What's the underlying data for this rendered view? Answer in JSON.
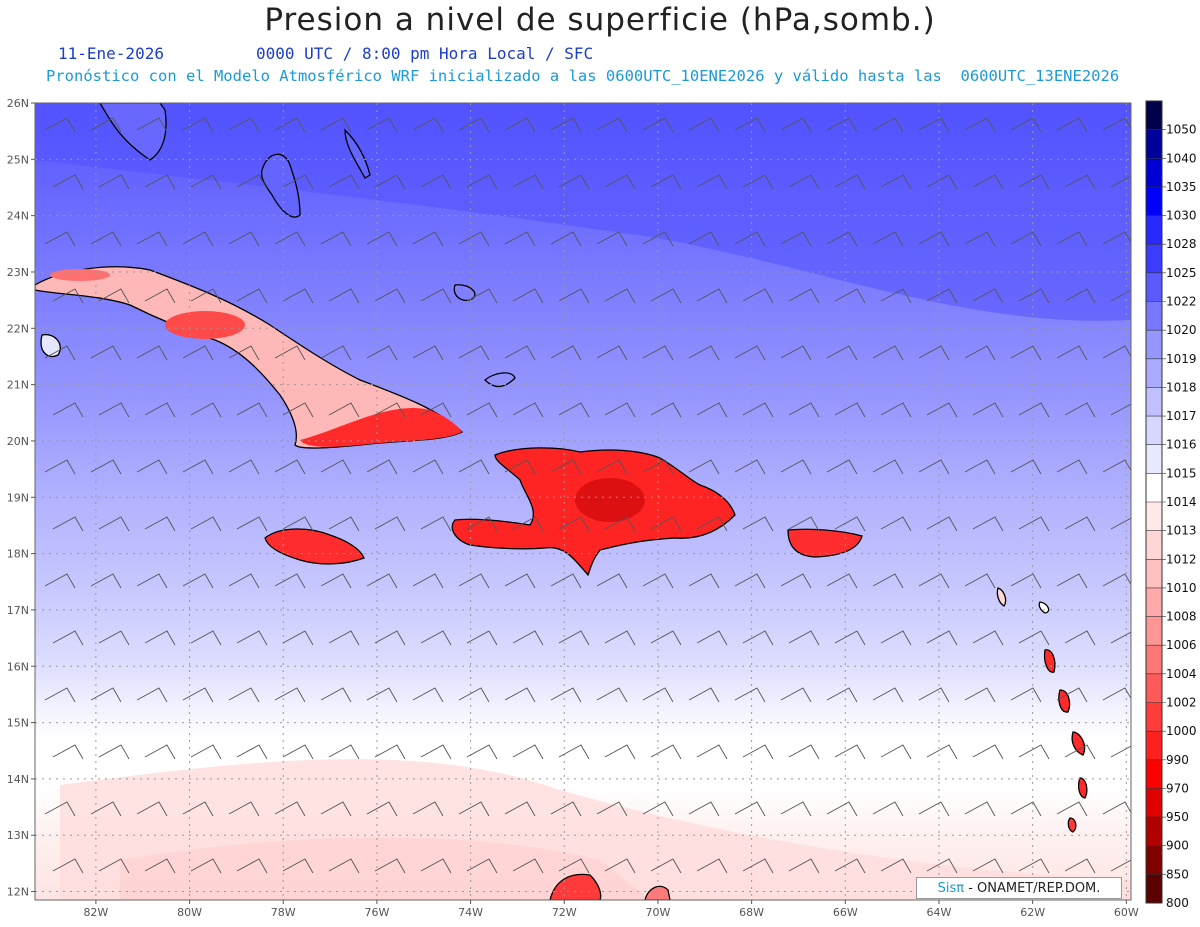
{
  "header": {
    "title": "Presion a nivel de superficie (hPa,somb.)",
    "date": "11-Ene-2026",
    "time": "0000 UTC / 8:00 pm Hora Local / SFC",
    "model_info": "Pronóstico con el Modelo Atmosférico WRF inicializado a las 0600UTC_10ENE2026 y válido hasta las  0600UTC_13ENE2026"
  },
  "axes": {
    "lat_labels": [
      "26N",
      "25N",
      "24N",
      "23N",
      "22N",
      "21N",
      "20N",
      "19N",
      "18N",
      "17N",
      "16N",
      "15N",
      "14N",
      "13N",
      "12N"
    ],
    "lon_labels": [
      "82W",
      "80W",
      "78W",
      "76W",
      "74W",
      "72W",
      "70W",
      "68W",
      "66W",
      "64W",
      "62W",
      "60W"
    ]
  },
  "colorbar": {
    "levels": [
      "1050",
      "1040",
      "1035",
      "1030",
      "1028",
      "1025",
      "1022",
      "1020",
      "1019",
      "1018",
      "1017",
      "1016",
      "1015",
      "1014",
      "1013",
      "1012",
      "1010",
      "1008",
      "1006",
      "1004",
      "1002",
      "1000",
      "990",
      "970",
      "950",
      "900",
      "850",
      "800"
    ],
    "colors": [
      "#00004a",
      "#00009a",
      "#0000d6",
      "#0000ff",
      "#2828ff",
      "#3c3cff",
      "#5a5aff",
      "#7878ff",
      "#9696ff",
      "#aaaaff",
      "#c0c0ff",
      "#d6d6ff",
      "#e8e8ff",
      "#ffffff",
      "#ffe8e8",
      "#ffd6d6",
      "#ffc0c0",
      "#ffaaaa",
      "#ff9696",
      "#ff7878",
      "#ff5a5a",
      "#ff3c3c",
      "#ff2020",
      "#ff0000",
      "#e00000",
      "#b00000",
      "#800000",
      "#5a0000"
    ]
  },
  "credit": {
    "sis": "Sisπ",
    "org": " - ONAMET/REP.DOM."
  }
}
